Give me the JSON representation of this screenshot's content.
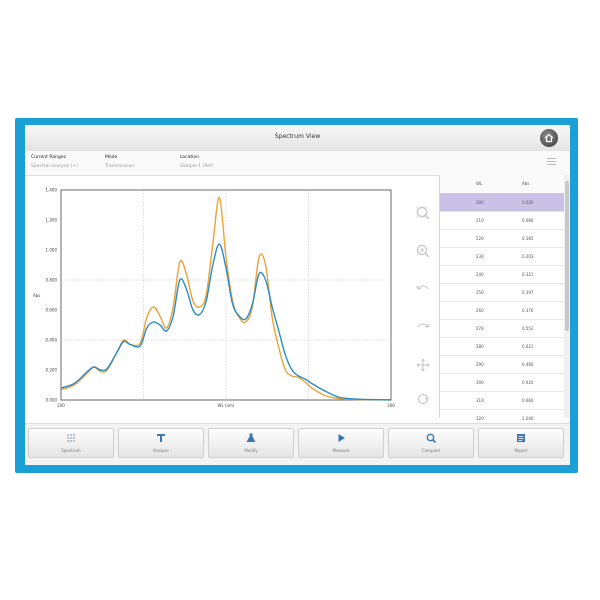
{
  "window": {
    "title": "Spectrum View"
  },
  "info": [
    {
      "label": "Current Ranges",
      "value": "Spectral analysis (+)"
    },
    {
      "label": "Mode",
      "value": "Transmission"
    },
    {
      "label": "Location",
      "value": "Sample 1 (Ref)"
    }
  ],
  "chart_data": {
    "type": "line",
    "title": "",
    "xlabel": "WL (nm)",
    "ylabel": "Abs",
    "x_ticks": [
      "200",
      "",
      "WL (nm)",
      "",
      "300"
    ],
    "y_ticks": [
      "0.000",
      "0.200",
      "0.400",
      "0.600",
      "0.800",
      "1.000",
      "1.200",
      "1.400"
    ],
    "xlim": [
      0,
      100
    ],
    "ylim": [
      0,
      1.4
    ],
    "grid": true,
    "series": [
      {
        "color": "#e8a23a",
        "x": [
          0,
          4,
          8,
          10,
          12,
          14,
          17,
          19,
          21,
          24,
          26,
          28,
          30,
          32,
          34,
          36,
          38,
          40,
          42,
          44,
          46,
          48,
          50,
          52,
          54,
          56,
          58,
          60,
          62,
          64,
          66,
          68,
          70,
          72,
          74,
          76,
          80,
          84,
          88,
          92,
          96,
          100
        ],
        "y": [
          0.07,
          0.1,
          0.18,
          0.22,
          0.19,
          0.2,
          0.32,
          0.4,
          0.37,
          0.38,
          0.55,
          0.62,
          0.56,
          0.48,
          0.62,
          0.92,
          0.84,
          0.66,
          0.62,
          0.7,
          1.04,
          1.35,
          0.95,
          0.66,
          0.55,
          0.52,
          0.62,
          0.95,
          0.9,
          0.55,
          0.35,
          0.2,
          0.16,
          0.15,
          0.12,
          0.08,
          0.03,
          0.01,
          0.005,
          0.003,
          0.002,
          0.0
        ]
      },
      {
        "color": "#2a8cc4",
        "x": [
          0,
          4,
          8,
          10,
          12,
          14,
          17,
          19,
          21,
          24,
          26,
          28,
          30,
          32,
          34,
          36,
          38,
          40,
          42,
          44,
          46,
          48,
          50,
          52,
          54,
          56,
          58,
          60,
          62,
          64,
          66,
          68,
          70,
          72,
          74,
          76,
          80,
          84,
          88,
          92,
          96,
          100
        ],
        "y": [
          0.08,
          0.11,
          0.19,
          0.22,
          0.2,
          0.21,
          0.32,
          0.39,
          0.37,
          0.36,
          0.48,
          0.52,
          0.5,
          0.46,
          0.56,
          0.8,
          0.74,
          0.6,
          0.57,
          0.66,
          0.9,
          1.04,
          0.88,
          0.64,
          0.56,
          0.54,
          0.64,
          0.84,
          0.8,
          0.62,
          0.46,
          0.3,
          0.2,
          0.16,
          0.14,
          0.11,
          0.06,
          0.02,
          0.008,
          0.004,
          0.002,
          0.001
        ]
      }
    ]
  },
  "table": {
    "headers": [
      "WL",
      "Abs"
    ],
    "rows": [
      [
        "200",
        "0.026"
      ],
      [
        "210",
        "0.080"
      ],
      [
        "220",
        "0.185"
      ],
      [
        "230",
        "0.203"
      ],
      [
        "240",
        "0.321"
      ],
      [
        "250",
        "0.397"
      ],
      [
        "260",
        "0.376"
      ],
      [
        "270",
        "0.552"
      ],
      [
        "280",
        "0.621"
      ],
      [
        "290",
        "0.480"
      ],
      [
        "300",
        "0.920"
      ],
      [
        "310",
        "0.660"
      ],
      [
        "320",
        "1.040"
      ]
    ]
  },
  "tools": [
    "zoom-fit-icon",
    "zoom-in-icon",
    "undo-icon",
    "redo-icon",
    "pan-icon",
    "reset-icon"
  ],
  "bottom_buttons": [
    {
      "label": "Spectrum",
      "icon": "grid-icon"
    },
    {
      "label": "Analyze",
      "icon": "analyze-icon"
    },
    {
      "label": "Modify",
      "icon": "flask-icon"
    },
    {
      "label": "Measure",
      "icon": "play-icon"
    },
    {
      "label": "Compare",
      "icon": "compare-icon"
    },
    {
      "label": "Report",
      "icon": "report-icon"
    }
  ]
}
